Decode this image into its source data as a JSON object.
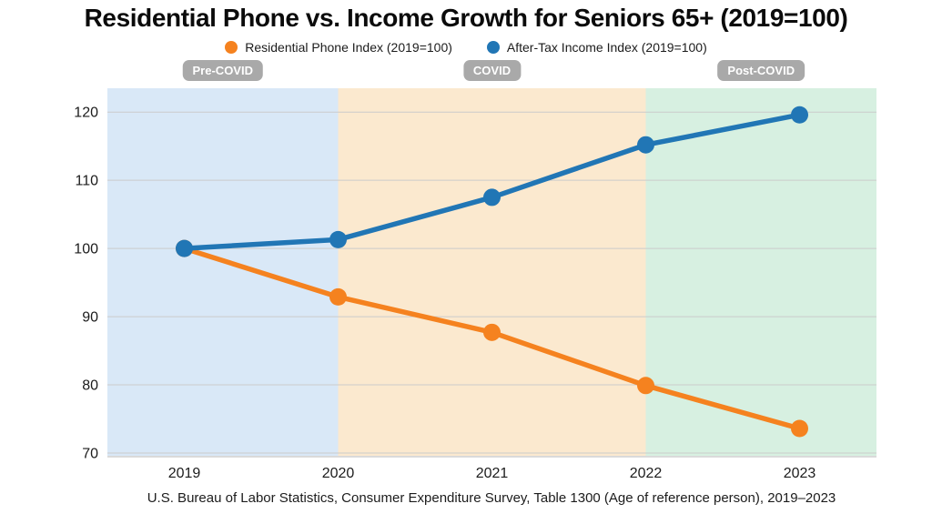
{
  "colors": {
    "background": "#FFFFFF",
    "badge_bg": "#A9A9A9",
    "badge_text": "#FFFFFF",
    "gridline": "#CBCBCB",
    "axis_line": "#DADADA",
    "tick_text": "#1C1C1C",
    "title_text": "#0B0B0B"
  },
  "chart_data": {
    "type": "line",
    "title": "Residential Phone vs. Income Growth for Seniors 65+ (2019=100)",
    "x": [
      "2019",
      "2020",
      "2021",
      "2022",
      "2023"
    ],
    "series": [
      {
        "name": "Residential Phone Index (2019=100)",
        "color": "#F5821F",
        "values": [
          100.0,
          92.9,
          87.7,
          79.9,
          73.6
        ]
      },
      {
        "name": "After-Tax Income Index (2019=100)",
        "color": "#2176B5",
        "values": [
          100.0,
          101.3,
          107.5,
          115.2,
          119.6
        ]
      }
    ],
    "ylim": [
      69.6,
      123.5
    ],
    "yticks": [
      70,
      80,
      90,
      100,
      110,
      120
    ],
    "grid": "horizontal",
    "legend_position": "top-center",
    "regions": [
      {
        "label": "Pre-COVID",
        "from": "2019",
        "to": "2020",
        "color": "#D9E8F7"
      },
      {
        "label": "COVID",
        "from": "2020",
        "to": "2022",
        "color": "#FBE9CF"
      },
      {
        "label": "Post-COVID",
        "from": "2022",
        "to": "2023",
        "color": "#D7F0E1"
      }
    ],
    "source_note": "U.S. Bureau of Labor Statistics, Consumer Expenditure Survey, Table 1300 (Age of reference person), 2019–2023"
  }
}
